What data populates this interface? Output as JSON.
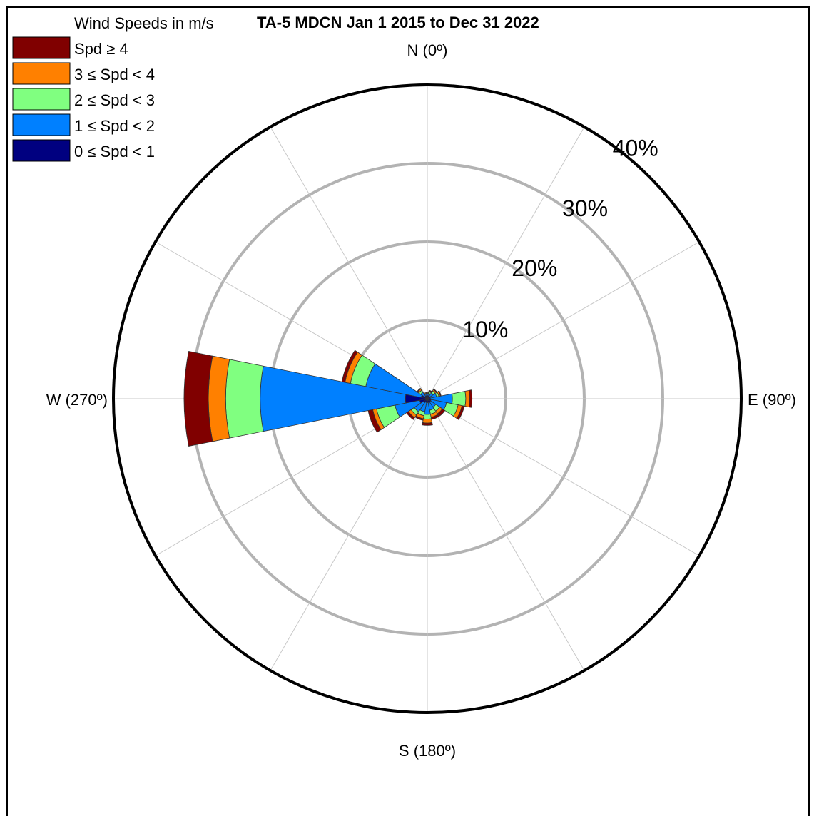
{
  "chart_data": {
    "type": "wind-rose",
    "title": "TA-5 MDCN Jan 1 2015 to Dec 31 2022",
    "legend_title": "Wind Speeds in m/s",
    "direction_labels": {
      "north": "N (0º)",
      "east": "E (90º)",
      "south": "S (180º)",
      "west": "W (270º)"
    },
    "radial_axis": {
      "max_percent": 40,
      "ticks": [
        10,
        20,
        30,
        40
      ],
      "tick_labels": [
        "10%",
        "20%",
        "30%",
        "40%"
      ]
    },
    "sector_width_deg": 22.5,
    "directions_deg": [
      0,
      22.5,
      45,
      67.5,
      90,
      112.5,
      135,
      157.5,
      180,
      202.5,
      225,
      247.5,
      270,
      292.5,
      315,
      337.5
    ],
    "series": [
      {
        "name": "0 ≤ Spd < 1",
        "color": "#000080",
        "values": [
          0.4,
          0.4,
          0.4,
          0.4,
          0.4,
          0.5,
          0.5,
          0.5,
          0.5,
          0.5,
          0.6,
          1.0,
          2.8,
          0.8,
          0.4,
          0.4
        ]
      },
      {
        "name": "1 ≤ Spd < 2",
        "color": "#0080ff",
        "values": [
          0.2,
          0.3,
          0.5,
          0.8,
          2.8,
          2.0,
          0.8,
          1.0,
          1.5,
          1.2,
          1.4,
          3.2,
          18.5,
          7.2,
          0.6,
          0.2
        ]
      },
      {
        "name": "2 ≤ Spd < 3",
        "color": "#80ff80",
        "values": [
          0.1,
          0.2,
          0.3,
          0.3,
          1.7,
          1.5,
          0.6,
          0.5,
          0.6,
          0.5,
          0.5,
          2.4,
          4.4,
          2.0,
          0.3,
          0.1
        ]
      },
      {
        "name": "3 ≤ Spd < 4",
        "color": "#ff8000",
        "values": [
          0.1,
          0.1,
          0.2,
          0.2,
          0.5,
          0.5,
          0.4,
          0.4,
          0.5,
          0.4,
          0.4,
          0.5,
          2.2,
          0.7,
          0.2,
          0.1
        ]
      },
      {
        "name": "Spd ≥ 4",
        "color": "#800000",
        "values": [
          0.0,
          0.1,
          0.1,
          0.1,
          0.3,
          0.3,
          0.4,
          0.3,
          0.3,
          0.2,
          0.3,
          0.6,
          3.1,
          0.4,
          0.1,
          0.0
        ]
      }
    ],
    "legend_order": [
      "Spd ≥ 4",
      "3 ≤ Spd < 4",
      "2 ≤ Spd < 3",
      "1 ≤ Spd < 2",
      "0 ≤ Spd < 1"
    ],
    "grid": true,
    "legend_position": "top-left"
  }
}
